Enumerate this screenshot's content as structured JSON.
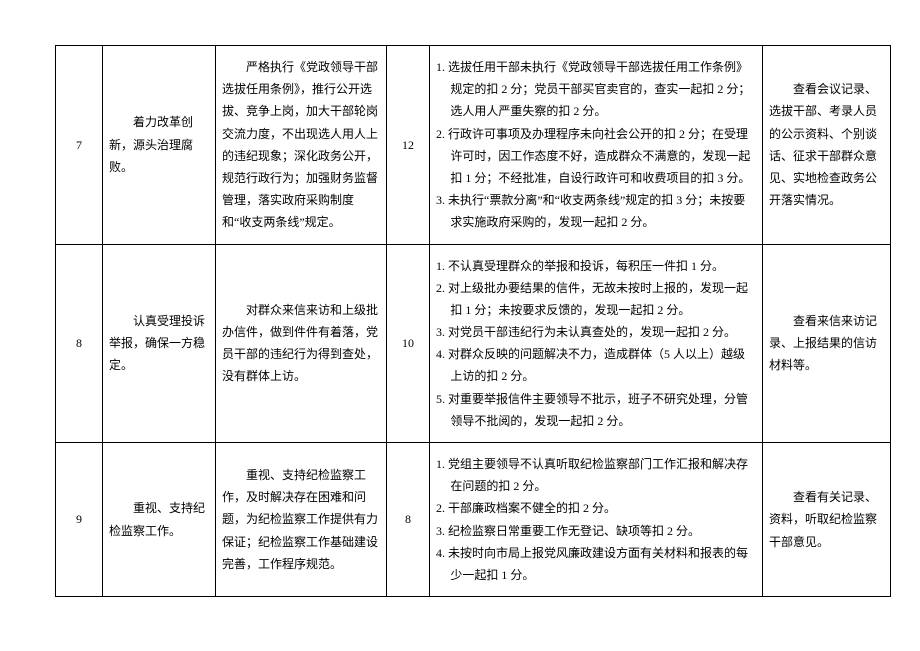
{
  "rows": [
    {
      "num": "7",
      "title": "着力改革创新，源头治理腐败。",
      "detail": "严格执行《党政领导干部选拔任用条例》，推行公开选拔、竞争上岗，加大干部轮岗交流力度，不出现选人用人上的违纪现象；深化政务公开，规范行政行为；加强财务监督管理，落实政府采购制度和“收支两条线”规定。",
      "score": "12",
      "rules": [
        "1. 选拔任用干部未执行《党政领导干部选拔任用工作条例》规定的扣 2 分；党员干部买官卖官的，查实一起扣 2 分；选人用人严重失察的扣 2 分。",
        "2. 行政许可事项及办理程序未向社会公开的扣 2 分；在受理许可时，因工作态度不好，造成群众不满意的，发现一起扣 1 分；不经批准，自设行政许可和收费项目的扣 3 分。",
        "3. 未执行“票款分离”和“收支两条线”规定的扣 3 分；未按要求实施政府采购的，发现一起扣 2 分。"
      ],
      "check": "查看会议记录、选拔干部、考录人员的公示资料、个别谈话、征求干部群众意见、实地检查政务公开落实情况。"
    },
    {
      "num": "8",
      "title": "认真受理投诉举报，确保一方稳定。",
      "detail": "对群众来信来访和上级批办信件，做到件件有着落，党员干部的违纪行为得到查处，没有群体上访。",
      "score": "10",
      "rules": [
        "1. 不认真受理群众的举报和投诉，每积压一件扣 1 分。",
        "2. 对上级批办要结果的信件，无故未按时上报的，发现一起扣 1 分；未按要求反馈的，发现一起扣 2 分。",
        "3. 对党员干部违纪行为未认真查处的，发现一起扣 2 分。",
        "4. 对群众反映的问题解决不力，造成群体（5 人以上）越级上访的扣 2 分。",
        "5. 对重要举报信件主要领导不批示，班子不研究处理，分管领导不批阅的，发现一起扣 2 分。"
      ],
      "check": "查看来信来访记录、上报结果的信访材料等。"
    },
    {
      "num": "9",
      "title": "重视、支持纪检监察工作。",
      "detail": "重视、支持纪检监察工作，及时解决存在困难和问题，为纪检监察工作提供有力保证；纪检监察工作基础建设完善，工作程序规范。",
      "score": "8",
      "rules": [
        "1. 党组主要领导不认真听取纪检监察部门工作汇报和解决存在问题的扣 2 分。",
        "2. 干部廉政档案不健全的扣 2 分。",
        "3. 纪检监察日常重要工作无登记、缺项等扣 2 分。",
        "4. 未按时向市局上报党风廉政建设方面有关材料和报表的每少一起扣 1 分。"
      ],
      "check": "查看有关记录、资料，听取纪检监察干部意见。"
    }
  ]
}
